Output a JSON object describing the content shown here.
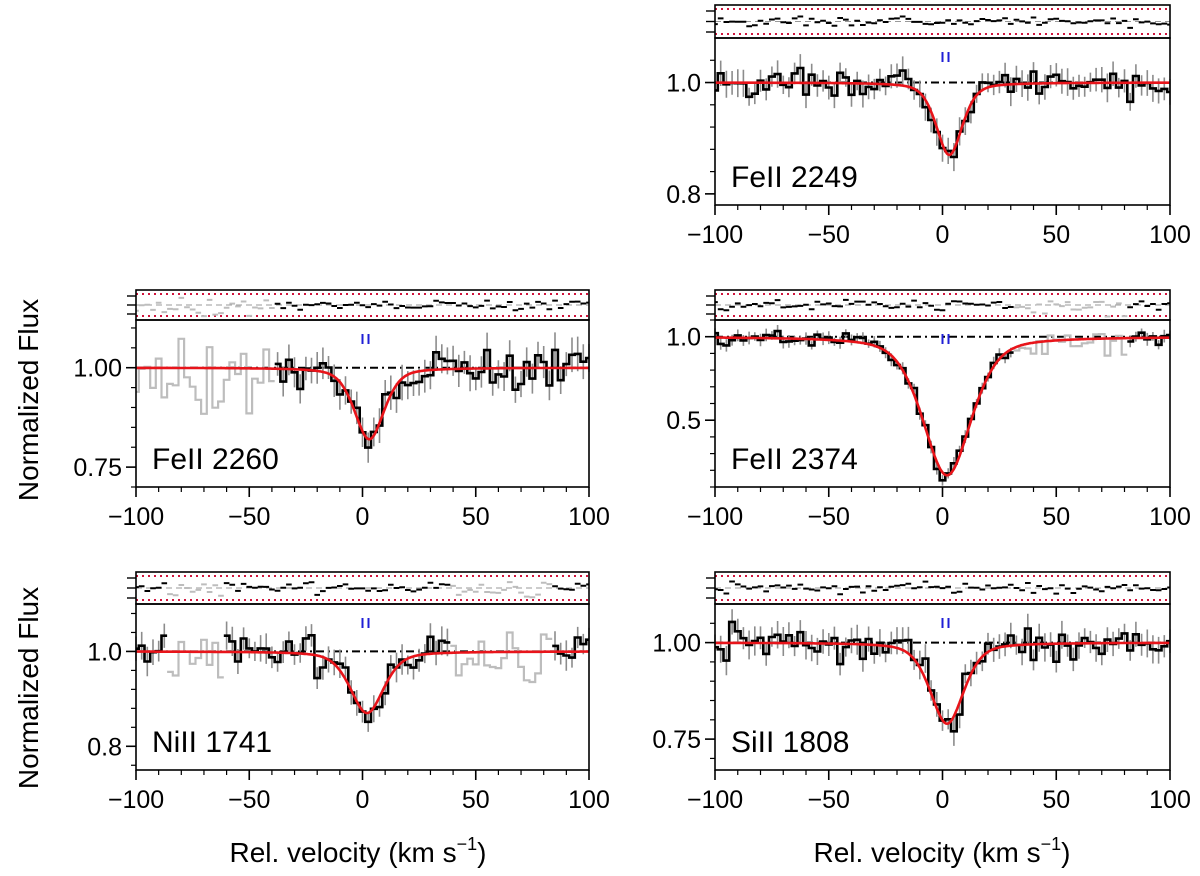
{
  "figure": {
    "ylabel": "Normalized Flux",
    "xlabel": "Rel. velocity  (km s",
    "xlabel_sup": "−1",
    "xlabel_end": ")"
  },
  "colors": {
    "data": "#000000",
    "errorbars": "#8c8c8c",
    "masked_data": "#bdbdbd",
    "model": "#e8141a",
    "continuum": "#000000",
    "component_marker": "#1f1fd6",
    "residual_bounds": "#d0143c"
  },
  "chart_data": [
    {
      "type": "line",
      "ion": "FeII 2249",
      "line_center_kms": 3,
      "min_flux": 0.87,
      "fwhm_kms": 14,
      "xlim": [
        -100,
        100
      ],
      "ylim": [
        0.78,
        1.08
      ],
      "xticks": [
        -100,
        -50,
        0,
        50,
        100
      ],
      "xticklabels": [
        "−100",
        "−50",
        "0",
        "50",
        "100"
      ],
      "yticks": [
        0.8,
        1.0
      ],
      "yticklabels": [
        "0.8",
        "1.0"
      ],
      "noise": 0.02,
      "masked_regions_kms": [],
      "component_velocities_kms": [
        0
      ],
      "series": [
        {
          "name": "data",
          "style": "histogram"
        },
        {
          "name": "model",
          "style": "line"
        },
        {
          "name": "continuum",
          "style": "dash-dot",
          "value": 1.0
        }
      ]
    },
    {
      "type": "line",
      "ion": "FeII 2260",
      "line_center_kms": 3,
      "min_flux": 0.82,
      "fwhm_kms": 16,
      "xlim": [
        -100,
        100
      ],
      "ylim": [
        0.7,
        1.12
      ],
      "xticks": [
        -100,
        -50,
        0,
        50,
        100
      ],
      "xticklabels": [
        "−100",
        "−50",
        "0",
        "50",
        "100"
      ],
      "yticks": [
        0.75,
        1.0
      ],
      "yticklabels": [
        "0.75",
        "1.00"
      ],
      "noise": 0.035,
      "masked_regions_kms": [
        [
          -100,
          -40
        ]
      ],
      "component_velocities_kms": [
        0
      ],
      "series": [
        {
          "name": "data",
          "style": "histogram"
        },
        {
          "name": "model",
          "style": "line"
        },
        {
          "name": "continuum",
          "style": "dash-dot",
          "value": 1.0
        }
      ]
    },
    {
      "type": "line",
      "ion": "FeII 2374",
      "line_center_kms": 2,
      "min_flux": 0.17,
      "fwhm_kms": 26,
      "xlim": [
        -100,
        100
      ],
      "ylim": [
        0.1,
        1.1
      ],
      "xticks": [
        -100,
        -50,
        0,
        50,
        100
      ],
      "xticklabels": [
        "−100",
        "−50",
        "0",
        "50",
        "100"
      ],
      "yticks": [
        0.5,
        1.0
      ],
      "yticklabels": [
        "0.5",
        "1.0"
      ],
      "noise": 0.03,
      "masked_regions_kms": [
        [
          32,
          80
        ]
      ],
      "component_velocities_kms": [
        0
      ],
      "series": [
        {
          "name": "data",
          "style": "histogram"
        },
        {
          "name": "model",
          "style": "line"
        },
        {
          "name": "continuum",
          "style": "dash-dot",
          "value": 1.0
        }
      ]
    },
    {
      "type": "line",
      "ion": "NiII 1741",
      "line_center_kms": 2,
      "min_flux": 0.87,
      "fwhm_kms": 18,
      "xlim": [
        -100,
        100
      ],
      "ylim": [
        0.75,
        1.1
      ],
      "xticks": [
        -100,
        -50,
        0,
        50,
        100
      ],
      "xticklabels": [
        "−100",
        "−50",
        "0",
        "50",
        "100"
      ],
      "yticks": [
        0.8,
        1.0
      ],
      "yticklabels": [
        "0.8",
        "1.0"
      ],
      "noise": 0.025,
      "masked_regions_kms": [
        [
          -85,
          -62
        ],
        [
          38,
          83
        ]
      ],
      "component_velocities_kms": [
        0
      ],
      "series": [
        {
          "name": "data",
          "style": "histogram"
        },
        {
          "name": "model",
          "style": "line"
        },
        {
          "name": "continuum",
          "style": "dash-dot",
          "value": 1.0
        }
      ]
    },
    {
      "type": "line",
      "ion": "SiII 1808",
      "line_center_kms": 2,
      "min_flux": 0.79,
      "fwhm_kms": 18,
      "xlim": [
        -100,
        100
      ],
      "ylim": [
        0.67,
        1.1
      ],
      "xticks": [
        -100,
        -50,
        0,
        50,
        100
      ],
      "xticklabels": [
        "−100",
        "−50",
        "0",
        "50",
        "100"
      ],
      "yticks": [
        0.75,
        1.0
      ],
      "yticklabels": [
        "0.75",
        "1.00"
      ],
      "noise": 0.03,
      "masked_regions_kms": [],
      "component_velocities_kms": [
        0
      ],
      "series": [
        {
          "name": "data",
          "style": "histogram"
        },
        {
          "name": "model",
          "style": "line"
        },
        {
          "name": "continuum",
          "style": "dash-dot",
          "value": 1.0
        }
      ]
    }
  ]
}
